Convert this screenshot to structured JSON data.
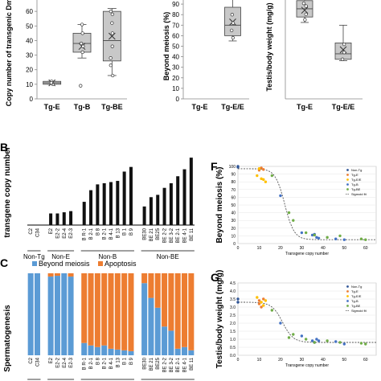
{
  "panel_letters": {
    "b": "B",
    "c": "C",
    "f": "F",
    "g": "G"
  },
  "chart_data": [
    {
      "id": "copy_number_boxplot",
      "type": "box",
      "ylabel": "Copy number of transgenic Dmrt1",
      "ylim": [
        0,
        70
      ],
      "yticks": [
        0,
        10,
        20,
        30,
        40,
        50,
        60
      ],
      "categories": [
        "Tg-E",
        "Tg-B",
        "Tg-BE"
      ],
      "boxes": [
        {
          "q1": 10,
          "median": 11,
          "q3": 12,
          "whisker_low": 10,
          "whisker_high": 12,
          "mean": 11,
          "points": [
            10,
            11,
            12,
            11
          ]
        },
        {
          "q1": 32,
          "median": 38,
          "q3": 45,
          "whisker_low": 28,
          "whisker_high": 51,
          "mean": 36,
          "points": [
            9,
            32,
            36,
            38,
            45,
            51
          ]
        },
        {
          "q1": 26,
          "median": 40,
          "q3": 60,
          "whisker_low": 16,
          "whisker_high": 62,
          "mean": 43,
          "points": [
            16,
            23,
            28,
            36,
            45,
            52,
            58,
            60
          ]
        }
      ],
      "colors": {
        "box": "#c8c8c8",
        "edge": "#444444"
      }
    },
    {
      "id": "beyond_meiosis_boxplot",
      "type": "box",
      "ylabel": "Beyond meiosis (%)",
      "ylim": [
        0,
        100
      ],
      "yticks": [
        0,
        10,
        20,
        30,
        40,
        50,
        60,
        70,
        80,
        90
      ],
      "categories": [
        "Tg-E",
        "Tg-E/E"
      ],
      "boxes": [
        null,
        {
          "q1": 60,
          "median": 70,
          "q3": 87,
          "whisker_low": 55,
          "whisker_high": 95,
          "mean": 73,
          "points": [
            58,
            65,
            72,
            80
          ]
        }
      ],
      "colors": {
        "box": "#c8c8c8",
        "edge": "#444444"
      }
    },
    {
      "id": "testis_weight_boxplot",
      "type": "box",
      "ylabel": "Testis/body weight (mg/g)",
      "ylim": [
        0,
        3.8
      ],
      "yticks": [],
      "categories": [
        "Tg-E",
        "Tg-E/E"
      ],
      "boxes": [
        {
          "q1": 3.0,
          "median": 3.3,
          "q3": 3.6,
          "whisker_low": 2.8,
          "whisker_high": 3.7,
          "mean": 3.25,
          "points": [
            2.9,
            3.1,
            3.4,
            3.5
          ]
        },
        {
          "q1": 1.45,
          "median": 1.65,
          "q3": 2.05,
          "whisker_low": 1.4,
          "whisker_high": 2.7,
          "mean": 1.8,
          "points": [
            1.45,
            1.7,
            2.0
          ]
        }
      ],
      "colors": {
        "box": "#c8c8c8",
        "edge": "#444444"
      }
    },
    {
      "id": "transgene_copy_bar",
      "type": "bar",
      "ylabel": "transgene copy number",
      "ylim": [
        0,
        65
      ],
      "categories": [
        "C2",
        "C34",
        "E2",
        "E2-2",
        "E2-4",
        "E2-3",
        "B R-1",
        "B 2-1",
        "B 8",
        "B 2-1",
        "B 4-1",
        "B 13",
        "B 1",
        "B 9",
        "BE30",
        "BE 21",
        "BE25",
        "BE 2-2",
        "BE 3-2",
        "BE 2-1",
        "BE 4-1",
        "BE 11"
      ],
      "values": [
        0,
        0,
        10,
        10,
        11,
        12,
        20,
        30,
        35,
        36,
        37,
        38,
        46,
        50,
        16,
        24,
        26,
        32,
        36,
        42,
        48,
        58
      ],
      "groups": [
        {
          "label": "Non-Tg",
          "count": 2
        },
        {
          "label": "Non-E",
          "count": 4
        },
        {
          "label": "Non-B",
          "count": 8
        },
        {
          "label": "Non-BE",
          "count": 8
        }
      ],
      "colors": {
        "bar": "#111111"
      }
    },
    {
      "id": "spermatogenesis_stacked",
      "type": "bar",
      "ylabel": "Spermatogenesis",
      "ylim": [
        0,
        100
      ],
      "legend": [
        "Beyond meiosis",
        "Apoptosis"
      ],
      "colors": {
        "Beyond meiosis": "#5b9bd5",
        "Apoptosis": "#ed7d31"
      },
      "categories": [
        "C2",
        "C34",
        "E2",
        "E2-2",
        "E2-4",
        "E2-3",
        "B R-1",
        "B 2-1",
        "B 8",
        "B 2-1",
        "B 4-1",
        "B 13",
        "B 1",
        "B 9",
        "BE30",
        "BE 21",
        "BE25",
        "BE 2-2",
        "BE 3-2",
        "BE 2-1",
        "BE 4-1",
        "BE 11"
      ],
      "series": [
        {
          "name": "Beyond meiosis",
          "values": [
            100,
            100,
            96,
            97,
            100,
            96,
            15,
            12,
            10,
            12,
            8,
            7,
            6,
            5,
            88,
            70,
            58,
            35,
            30,
            8,
            10,
            6
          ]
        },
        {
          "name": "Apoptosis",
          "values": [
            0,
            0,
            4,
            3,
            0,
            4,
            85,
            88,
            90,
            88,
            92,
            93,
            94,
            95,
            12,
            30,
            42,
            65,
            70,
            92,
            90,
            94
          ]
        }
      ]
    },
    {
      "id": "beyond_meiosis_scatter",
      "type": "scatter",
      "xlabel": "Transgene copy number",
      "ylabel": "Beyond meiosis (%)",
      "xlim": [
        0,
        65
      ],
      "ylim": [
        0,
        100
      ],
      "xticks": [
        0,
        10,
        20,
        30,
        40,
        50,
        60
      ],
      "yticks": [
        0,
        10,
        20,
        30,
        40,
        50,
        60,
        70,
        80,
        90,
        100
      ],
      "legend": [
        "Non-Tg",
        "Tg-E",
        "Tg-E/E",
        "Tg-B",
        "Tg-BE",
        "Sigmoid fit"
      ],
      "colors": {
        "Non-Tg": "#2f5597",
        "Tg-E": "#ed7d31",
        "Tg-E/E": "#ffc000",
        "Tg-B": "#4472c4",
        "Tg-BE": "#70ad47",
        "Sigmoid fit": "#555555"
      },
      "series": [
        {
          "name": "Non-Tg",
          "x": [
            0,
            0
          ],
          "y": [
            100,
            99
          ]
        },
        {
          "name": "Tg-E",
          "x": [
            10,
            10,
            11,
            12
          ],
          "y": [
            97,
            95,
            98,
            96
          ]
        },
        {
          "name": "Tg-E/E",
          "x": [
            9,
            11,
            12,
            13,
            10
          ],
          "y": [
            88,
            84,
            83,
            80,
            97
          ]
        },
        {
          "name": "Tg-B",
          "x": [
            20,
            30,
            35,
            36,
            37,
            38,
            46,
            50
          ],
          "y": [
            62,
            14,
            11,
            12,
            8,
            7,
            6,
            5
          ]
        },
        {
          "name": "Tg-BE",
          "x": [
            16,
            24,
            26,
            32,
            36,
            42,
            48,
            58,
            60
          ],
          "y": [
            88,
            40,
            30,
            14,
            11,
            8,
            10,
            6,
            5
          ]
        }
      ],
      "fit": {
        "top": 97,
        "bottom": 5,
        "x50": 22,
        "slope": 0.45
      }
    },
    {
      "id": "testis_weight_scatter",
      "type": "scatter",
      "xlabel": "Transgene copy number",
      "ylabel": "Testis/body weight (mg/g)",
      "xlim": [
        0,
        65
      ],
      "ylim": [
        0,
        4.5
      ],
      "xticks": [
        0,
        10,
        20,
        30,
        40,
        50,
        60
      ],
      "yticks": [
        0,
        0.5,
        1.0,
        1.5,
        2.0,
        2.5,
        3.0,
        3.5,
        4.0,
        4.5
      ],
      "legend": [
        "Non-Tg",
        "Tg-E",
        "Tg-E/E",
        "Tg-B",
        "Tg-BE",
        "Sigmoid fit"
      ],
      "colors": {
        "Non-Tg": "#2f5597",
        "Tg-E": "#ed7d31",
        "Tg-E/E": "#ffc000",
        "Tg-B": "#4472c4",
        "Tg-BE": "#70ad47",
        "Sigmoid fit": "#555555"
      },
      "series": [
        {
          "name": "Non-Tg",
          "x": [
            0,
            0
          ],
          "y": [
            3.5,
            3.3
          ]
        },
        {
          "name": "Tg-E",
          "x": [
            10,
            10,
            11,
            12
          ],
          "y": [
            3.4,
            3.2,
            3.0,
            3.5
          ]
        },
        {
          "name": "Tg-E/E",
          "x": [
            9,
            11,
            12,
            13
          ],
          "y": [
            3.6,
            3.3,
            3.1,
            3.4
          ]
        },
        {
          "name": "Tg-B",
          "x": [
            20,
            30,
            35,
            36,
            37,
            38,
            46,
            50
          ],
          "y": [
            2.0,
            1.2,
            0.9,
            0.8,
            1.0,
            0.9,
            0.85,
            0.7
          ]
        },
        {
          "name": "Tg-BE",
          "x": [
            16,
            24,
            26,
            32,
            36,
            42,
            48,
            58,
            60
          ],
          "y": [
            2.8,
            1.1,
            1.3,
            1.0,
            0.8,
            0.9,
            0.8,
            0.75,
            0.7
          ]
        }
      ],
      "fit": {
        "top": 3.3,
        "bottom": 0.8,
        "x50": 21,
        "slope": 0.4
      }
    }
  ]
}
